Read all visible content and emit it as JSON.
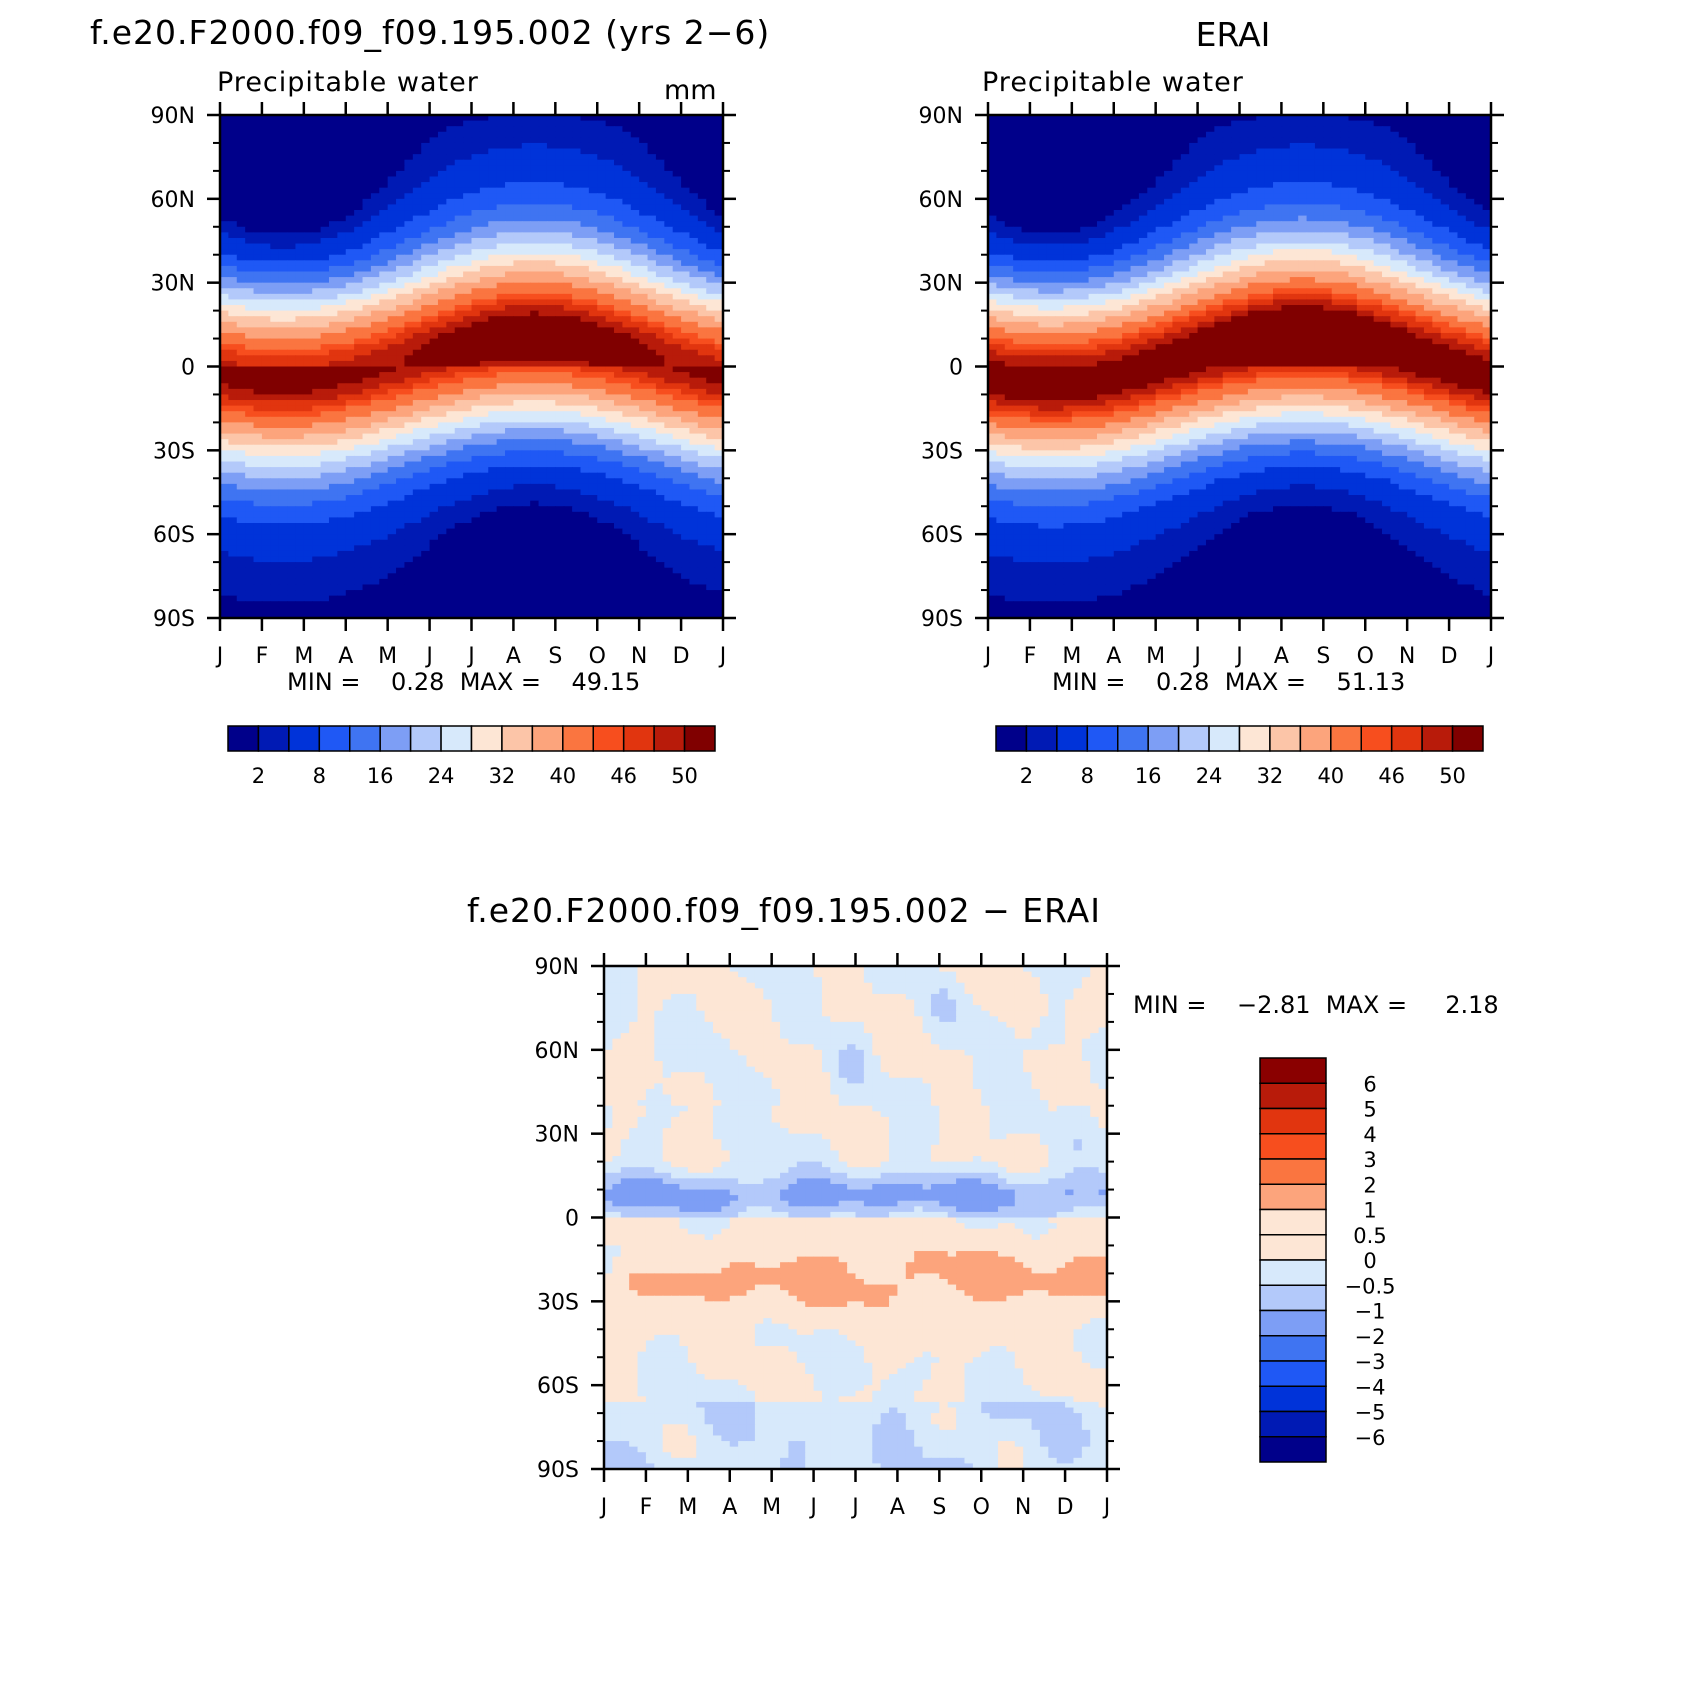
{
  "chart_data": [
    {
      "type": "heatmap",
      "title": "f.e20.F2000.f09_f09.195.002 (yrs 2−6)",
      "subtitle": "Precipitable water",
      "units": "mm",
      "x_tick_labels": [
        "J",
        "F",
        "M",
        "A",
        "M",
        "J",
        "J",
        "A",
        "S",
        "O",
        "N",
        "D",
        "J"
      ],
      "y_tick_labels": [
        "90N",
        "60N",
        "30N",
        "0",
        "30S",
        "60S",
        "90S"
      ],
      "ylim": [
        -90,
        90
      ],
      "stats_text": "MIN =    0.28  MAX =    49.15",
      "min": 0.28,
      "max": 49.15,
      "colorbar_labels": [
        "2",
        "8",
        "16",
        "24",
        "32",
        "40",
        "46",
        "50"
      ],
      "colorbar_colors": [
        "#00008a",
        "#001ab4",
        "#0033d9",
        "#1f58f5",
        "#3f74f2",
        "#7d9ef5",
        "#b3c9fa",
        "#d7e9fb",
        "#fde6d5",
        "#fcc5a8",
        "#fca47c",
        "#fa7540",
        "#f74e1e",
        "#e1350f",
        "#b81b0a",
        "#800000"
      ],
      "peak_lat": 6,
      "seasonal_shift_deg": 8,
      "equatorial_max": 49.15,
      "contour_levels": [
        2,
        4,
        8,
        12,
        16,
        20,
        24,
        28,
        32,
        36,
        40,
        44,
        46,
        48,
        50
      ]
    },
    {
      "type": "heatmap",
      "title": "ERAI",
      "subtitle": "Precipitable water",
      "x_tick_labels": [
        "J",
        "F",
        "M",
        "A",
        "M",
        "J",
        "J",
        "A",
        "S",
        "O",
        "N",
        "D",
        "J"
      ],
      "y_tick_labels": [
        "90N",
        "60N",
        "30N",
        "0",
        "30S",
        "60S",
        "90S"
      ],
      "ylim": [
        -90,
        90
      ],
      "stats_text": "MIN =    0.28  MAX =    51.13",
      "min": 0.28,
      "max": 51.13,
      "colorbar_labels": [
        "2",
        "8",
        "16",
        "24",
        "32",
        "40",
        "46",
        "50"
      ],
      "colorbar_colors": [
        "#00008a",
        "#001ab4",
        "#0033d9",
        "#1f58f5",
        "#3f74f2",
        "#7d9ef5",
        "#b3c9fa",
        "#d7e9fb",
        "#fde6d5",
        "#fcc5a8",
        "#fca47c",
        "#fa7540",
        "#f74e1e",
        "#e1350f",
        "#b81b0a",
        "#800000"
      ],
      "peak_lat": 6,
      "seasonal_shift_deg": 8,
      "equatorial_max": 51.13,
      "contour_levels": [
        2,
        4,
        8,
        12,
        16,
        20,
        24,
        28,
        32,
        36,
        40,
        44,
        46,
        48,
        50
      ]
    },
    {
      "type": "heatmap",
      "title": "f.e20.F2000.f09_f09.195.002 − ERAI",
      "x_tick_labels": [
        "J",
        "F",
        "M",
        "A",
        "M",
        "J",
        "J",
        "A",
        "S",
        "O",
        "N",
        "D",
        "J"
      ],
      "y_tick_labels": [
        "90N",
        "60N",
        "30N",
        "0",
        "30S",
        "60S",
        "90S"
      ],
      "ylim": [
        -90,
        90
      ],
      "stats_text": "MIN =    −2.81  MAX =     2.18",
      "min": -2.81,
      "max": 2.18,
      "colorbar_labels": [
        "6",
        "5",
        "4",
        "3",
        "2",
        "1",
        "0.5",
        "0",
        "−0.5",
        "−1",
        "−2",
        "−3",
        "−4",
        "−5",
        "−6"
      ],
      "colorbar_colors": [
        "#8a0000",
        "#b81b0a",
        "#e1350f",
        "#f74e1e",
        "#fa7540",
        "#fca47c",
        "#fde6d5",
        "#fde6d5",
        "#d7e9fb",
        "#b3c9fa",
        "#7d9ef5",
        "#3f74f2",
        "#1f58f5",
        "#0033d9",
        "#001ab4",
        "#00008a"
      ],
      "contour_levels": [
        -6,
        -5,
        -4,
        -3,
        -2,
        -1,
        -0.5,
        0,
        0.5,
        1,
        2,
        3,
        4,
        5,
        6
      ]
    }
  ]
}
